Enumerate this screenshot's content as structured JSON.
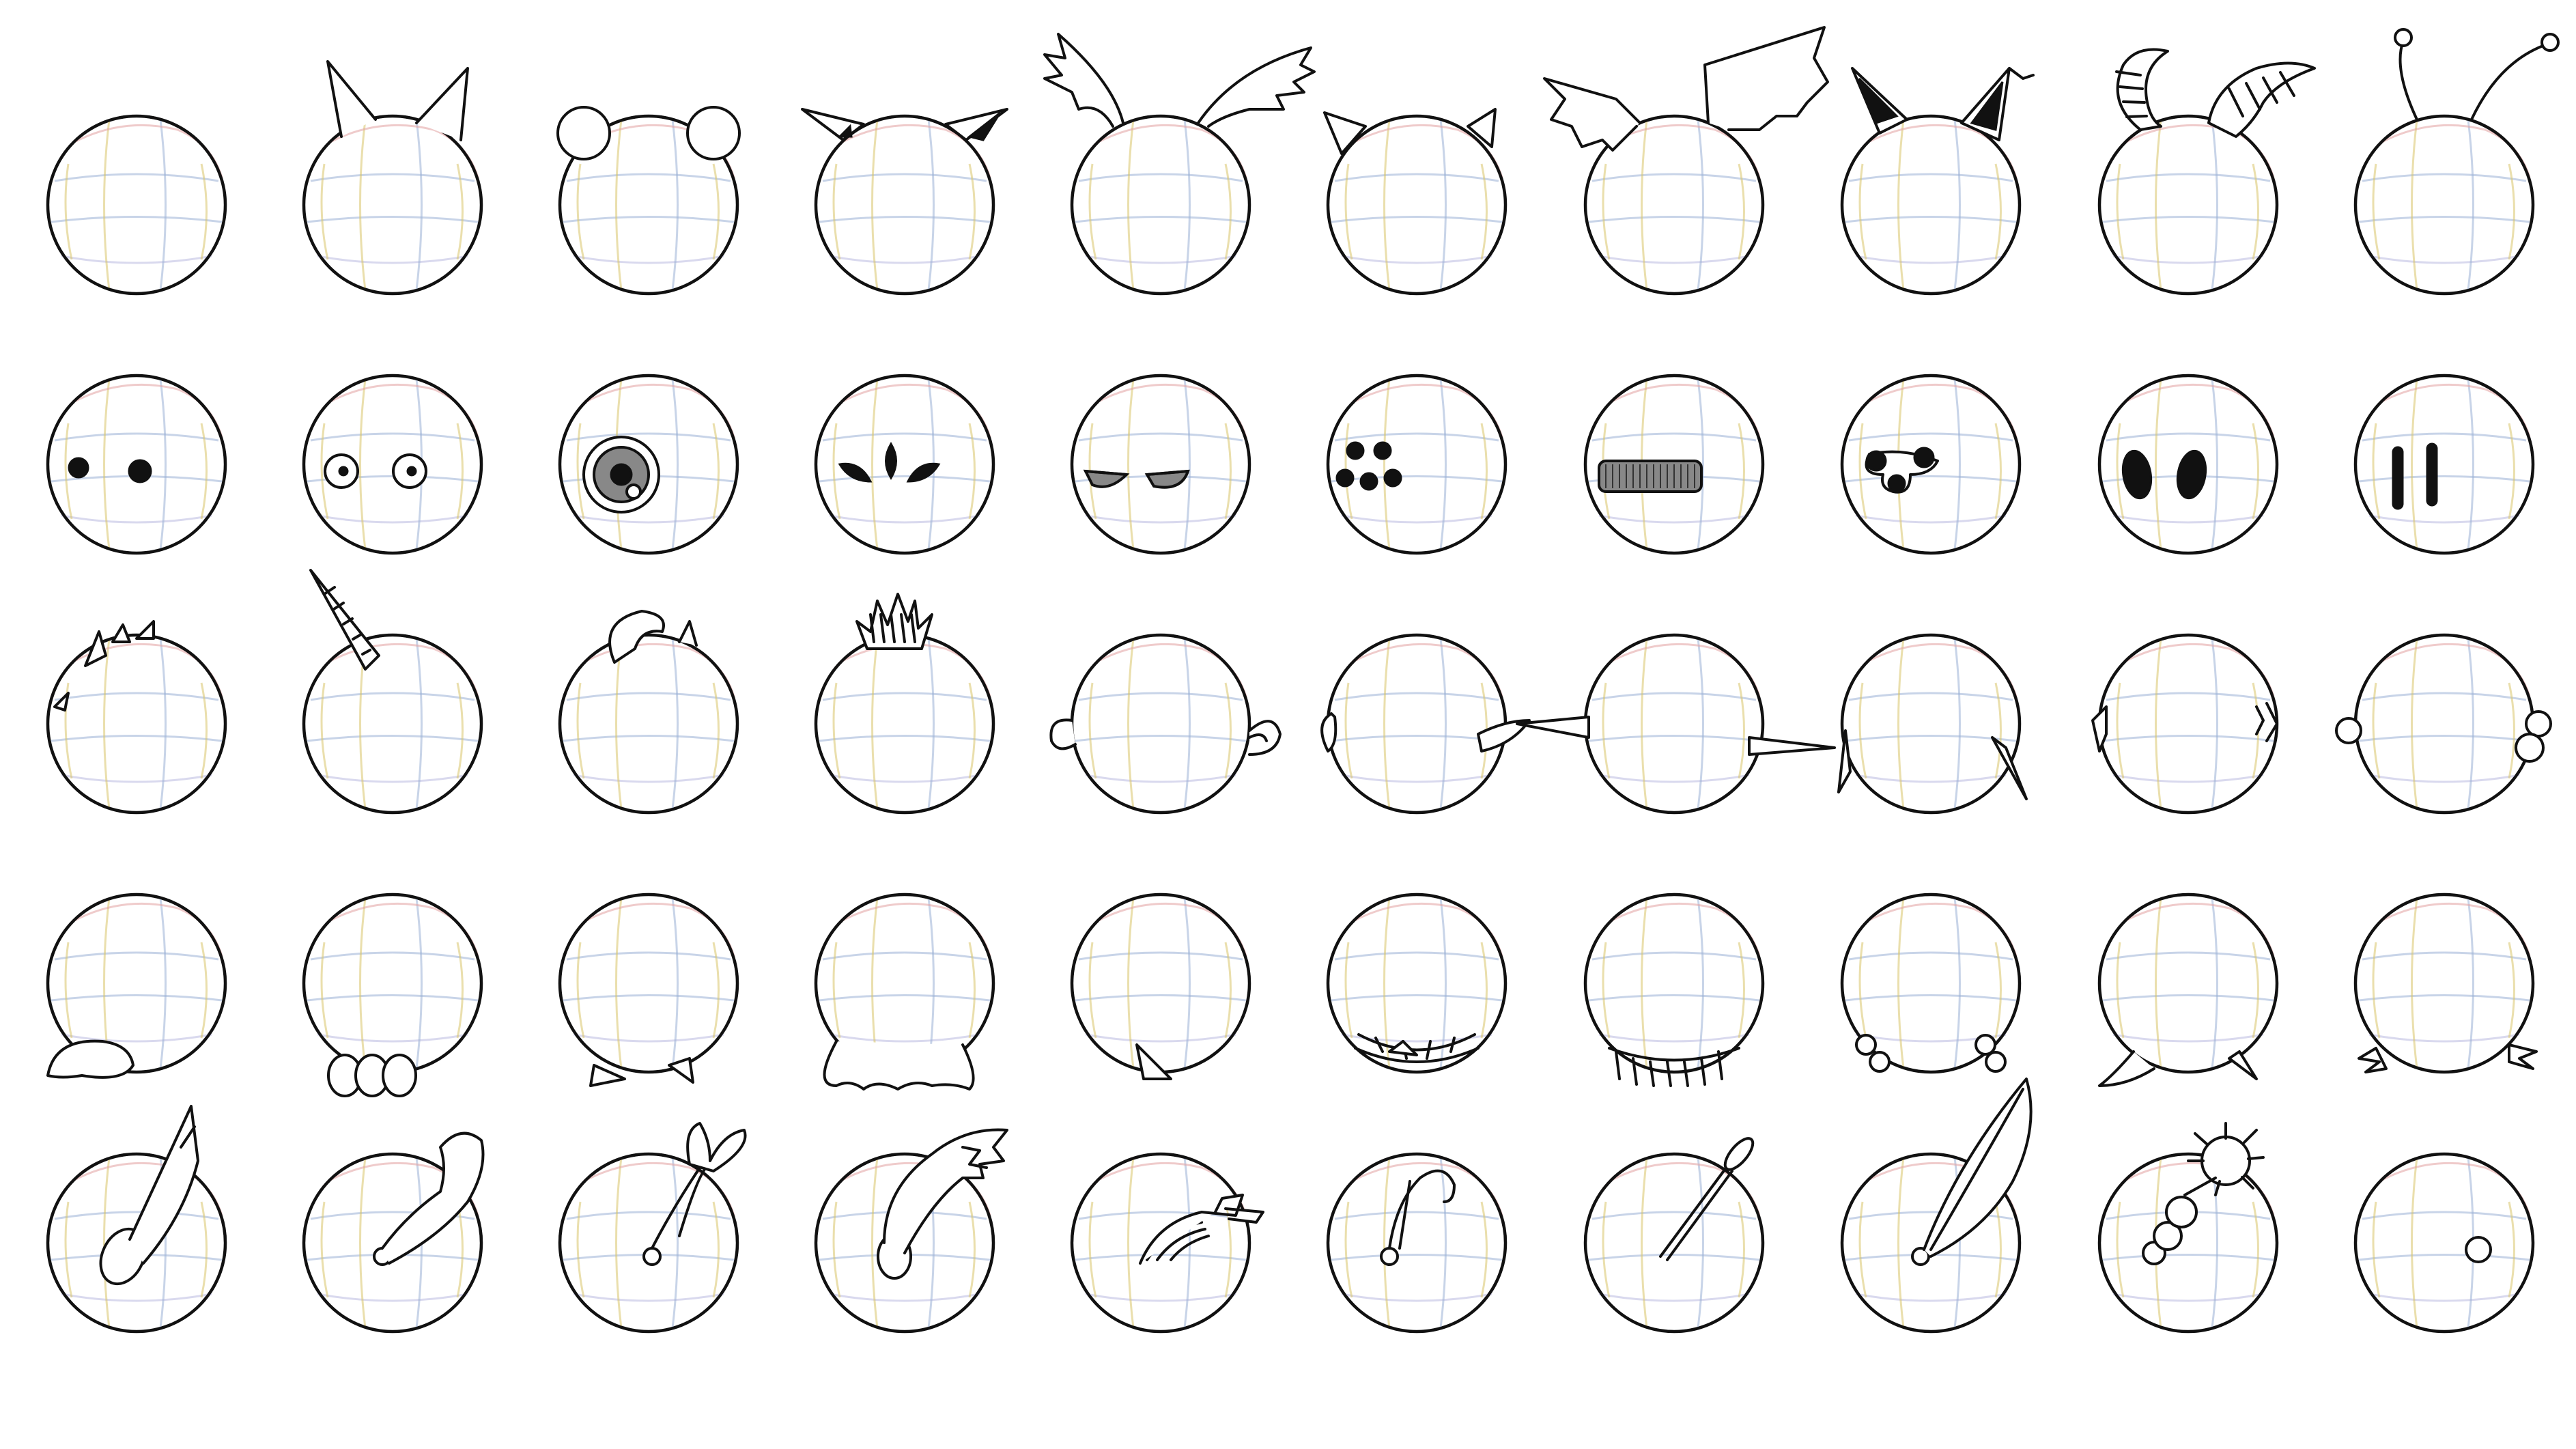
{
  "sheet": {
    "background": "#ffffff",
    "line_color": "#111111",
    "sketch_grid_colors": [
      "#9bb0d6",
      "#d9c46a",
      "#e2a0a0",
      "#b9b9e0"
    ]
  },
  "rows": [
    {
      "group": "head-top",
      "features": [
        "none",
        "cat-ears",
        "bear-ears",
        "pointed-ears",
        "feather-wings",
        "small-horns",
        "bat-wings",
        "fox-ears",
        "ram-horns",
        "antennae"
      ]
    },
    {
      "group": "eyes",
      "features": [
        "dot-eyes",
        "round-eyes",
        "cyclops-eye",
        "three-eyes",
        "angry-eyes",
        "spider-eyes",
        "visor",
        "stalk-eyes",
        "oval-eyes",
        "slit-eyes"
      ]
    },
    {
      "group": "head-crest-and-sides",
      "features": [
        "spikes",
        "unicorn-horn",
        "hair-tuft",
        "mohawk",
        "round-ears",
        "side-fins",
        "long-side-spikes",
        "tusks",
        "side-tufts",
        "side-bulbs"
      ]
    },
    {
      "group": "feet",
      "features": [
        "flat-foot",
        "toes",
        "small-feet",
        "blob-base",
        "single-claw",
        "teeth-base",
        "fringe-base",
        "ball-feet",
        "wide-feet",
        "claw-feet"
      ]
    },
    {
      "group": "tails",
      "features": [
        "cone-tail",
        "curl-tail",
        "heart-tail",
        "fox-tail",
        "bone-tail",
        "hook-tail",
        "paddle-tail",
        "leaf-tail",
        "mace-tail",
        "nub-tail"
      ]
    }
  ]
}
